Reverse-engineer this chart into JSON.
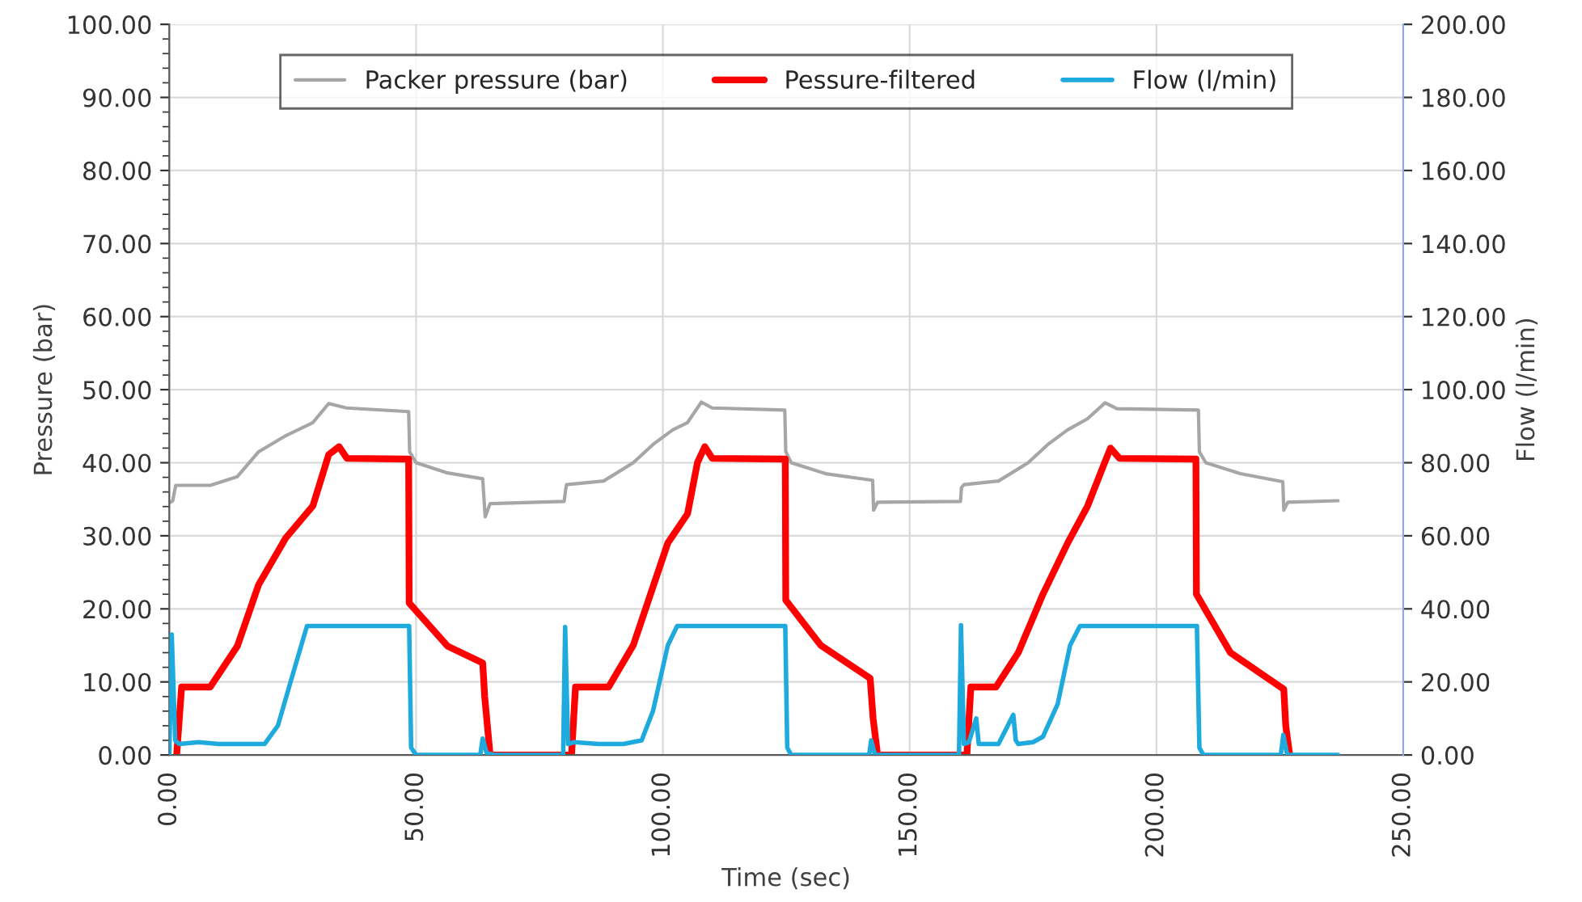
{
  "chart_data": {
    "type": "line",
    "xlabel": "Time (sec)",
    "ylabel": "Pressure (bar)",
    "y2label": "Flow (l/min)",
    "xlim": [
      0,
      250
    ],
    "xticks": [
      {
        "value": 0,
        "label": "0.00"
      },
      {
        "value": 50,
        "label": "50.00"
      },
      {
        "value": 100,
        "label": "100.00"
      },
      {
        "value": 150,
        "label": "150.00"
      },
      {
        "value": 200,
        "label": "200.00"
      },
      {
        "value": 250,
        "label": "250.00"
      }
    ],
    "ylim": [
      0,
      100
    ],
    "yticks": [
      {
        "value": 0,
        "label": "0.00"
      },
      {
        "value": 10,
        "label": "10.00"
      },
      {
        "value": 20,
        "label": "20.00"
      },
      {
        "value": 30,
        "label": "30.00"
      },
      {
        "value": 40,
        "label": "40.00"
      },
      {
        "value": 50,
        "label": "50.00"
      },
      {
        "value": 60,
        "label": "60.00"
      },
      {
        "value": 70,
        "label": "70.00"
      },
      {
        "value": 80,
        "label": "80.00"
      },
      {
        "value": 90,
        "label": "90.00"
      },
      {
        "value": 100,
        "label": "100.00"
      }
    ],
    "y2lim": [
      0,
      200
    ],
    "y2ticks": [
      {
        "value": 0,
        "label": "0.00"
      },
      {
        "value": 20,
        "label": "20.00"
      },
      {
        "value": 40,
        "label": "40.00"
      },
      {
        "value": 60,
        "label": "60.00"
      },
      {
        "value": 80,
        "label": "80.00"
      },
      {
        "value": 100,
        "label": "100.00"
      },
      {
        "value": 120,
        "label": "120.00"
      },
      {
        "value": 140,
        "label": "140.00"
      },
      {
        "value": 160,
        "label": "160.00"
      },
      {
        "value": 180,
        "label": "180.00"
      },
      {
        "value": 200,
        "label": "200.00"
      }
    ],
    "grid": true,
    "legend": "top",
    "marker": "none",
    "line_style": "solid",
    "series": [
      {
        "name": "Packer pressure (bar)",
        "color": "#a6a6a6",
        "x": [
          0,
          0.7,
          1.3,
          8.3,
          13.8,
          18.1,
          23.6,
          29.1,
          32.3,
          35.9,
          48.5,
          48.7,
          50,
          56.4,
          63.5,
          64,
          65,
          80,
          80.3,
          80.5,
          88,
          94,
          98,
          102,
          105,
          107.8,
          110,
          124.7,
          124.9,
          126,
          133,
          142.5,
          142.7,
          143.5,
          160.3,
          160.5,
          161,
          168,
          174,
          178,
          182,
          186,
          189.6,
          192,
          208.5,
          208.7,
          210,
          217,
          225.6,
          225.8,
          226.6,
          236.8
        ],
        "values": [
          34.5,
          34.8,
          36.9,
          36.9,
          38.1,
          41.5,
          43.7,
          45.5,
          48.1,
          47.5,
          47.0,
          41.5,
          40.0,
          38.6,
          37.8,
          32.6,
          34.4,
          34.7,
          36.3,
          37.0,
          37.5,
          40.0,
          42.5,
          44.5,
          45.5,
          48.3,
          47.5,
          47.2,
          41.5,
          40.0,
          38.5,
          37.6,
          33.5,
          34.6,
          34.7,
          36.6,
          37.0,
          37.5,
          40.0,
          42.5,
          44.5,
          46.0,
          48.2,
          47.4,
          47.2,
          41.5,
          40.0,
          38.5,
          37.4,
          33.5,
          34.6,
          34.8
        ]
      },
      {
        "name": "Pessure-filtered",
        "color": "#ff0000",
        "x": [
          1.5,
          2.5,
          8.3,
          13.8,
          18.1,
          23.6,
          29.1,
          32.3,
          34.4,
          36,
          48.5,
          48.6,
          56.4,
          63.5,
          63.9,
          65,
          81.5,
          82.3,
          89,
          94,
          98,
          101,
          105,
          107,
          108.5,
          110,
          124.8,
          124.9,
          132,
          142,
          142.6,
          143.5,
          161.6,
          162.4,
          167.5,
          172,
          177,
          182,
          186,
          189.5,
          190.7,
          192.5,
          208,
          208.1,
          215,
          225.8,
          226.2,
          227
        ],
        "values": [
          0,
          9.3,
          9.3,
          14.9,
          23.3,
          29.7,
          34.1,
          41.1,
          42.2,
          40.6,
          40.5,
          20.8,
          14.9,
          12.6,
          8,
          0,
          0,
          9.3,
          9.3,
          15,
          23,
          29,
          33,
          40,
          42.2,
          40.6,
          40.5,
          21.2,
          15,
          10.5,
          5,
          0,
          0,
          9.3,
          9.3,
          14,
          22,
          29,
          34,
          40,
          42,
          40.6,
          40.5,
          22,
          14,
          9,
          4,
          0
        ]
      },
      {
        "name": "Flow (l/min)",
        "color": "#1eaadc",
        "axis": "y2",
        "x": [
          0,
          0.5,
          1.2,
          2,
          6,
          10,
          15,
          19.3,
          22,
          25,
          27.9,
          48.6,
          49,
          50,
          63,
          63.5,
          64.3,
          66,
          79.8,
          80.2,
          80.8,
          82,
          87,
          92,
          95.7,
          98,
          101,
          102.9,
          124.8,
          125.2,
          126,
          141.8,
          142.2,
          143,
          160,
          160.4,
          161,
          162,
          163.5,
          164,
          168,
          171,
          171.5,
          172,
          175,
          177,
          180,
          182.5,
          184.5,
          208.2,
          208.7,
          209.5,
          225.2,
          225.7,
          226.5,
          236.8
        ],
        "values": [
          0,
          33,
          4,
          3,
          3.5,
          3,
          3,
          3,
          8,
          22,
          35.3,
          35.3,
          2,
          0,
          0,
          4.5,
          0.5,
          0,
          0,
          35,
          3,
          3.5,
          3,
          3,
          4,
          12,
          30,
          35.3,
          35.3,
          2,
          0,
          0,
          4,
          0,
          0,
          35.5,
          3,
          3.5,
          10,
          3,
          3,
          11,
          4,
          3,
          3.5,
          5,
          14,
          30,
          35.3,
          35.3,
          2,
          0,
          0,
          5.5,
          0,
          0
        ]
      }
    ]
  }
}
